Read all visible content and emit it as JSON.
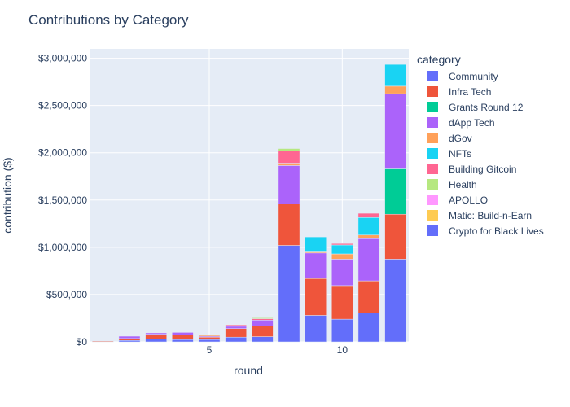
{
  "chart_data": {
    "type": "bar",
    "barmode": "stack",
    "title": "Contributions by Category",
    "xlabel": "round",
    "ylabel": "contribution ($)",
    "x": [
      1,
      2,
      3,
      4,
      5,
      6,
      7,
      8,
      9,
      10,
      11,
      12
    ],
    "x_ticks": [
      5,
      10
    ],
    "y_ticks": [
      0,
      500000,
      1000000,
      1500000,
      2000000,
      2500000,
      3000000
    ],
    "y_tick_labels": [
      "$0",
      "$500,000",
      "$1,000,000",
      "$1,500,000",
      "$2,000,000",
      "$2,500,000",
      "$3,000,000"
    ],
    "ylim": [
      0,
      3100000
    ],
    "xlim": [
      0.5,
      12.5
    ],
    "grid": true,
    "background": "#E5ECF6",
    "legend": {
      "title": "category",
      "placement": "right"
    },
    "series": [
      {
        "name": "Community",
        "color": "#636EFA",
        "values": [
          2000,
          15000,
          30000,
          25000,
          25000,
          50000,
          55000,
          1020000,
          280000,
          240000,
          305000,
          875000
        ]
      },
      {
        "name": "Infra Tech",
        "color": "#EF553B",
        "values": [
          8000,
          20000,
          50000,
          50000,
          25000,
          90000,
          115000,
          440000,
          390000,
          355000,
          340000,
          475000
        ]
      },
      {
        "name": "Grants Round 12",
        "color": "#00CC96",
        "values": [
          0,
          0,
          0,
          0,
          0,
          0,
          0,
          0,
          0,
          0,
          0,
          480000
        ]
      },
      {
        "name": "dApp Tech",
        "color": "#AB63FA",
        "values": [
          3000,
          25000,
          15000,
          25000,
          10000,
          25000,
          60000,
          405000,
          270000,
          280000,
          455000,
          795000
        ]
      },
      {
        "name": "dGov",
        "color": "#FFA15A",
        "values": [
          0,
          0,
          0,
          0,
          10000,
          0,
          0,
          25000,
          20000,
          55000,
          30000,
          80000
        ]
      },
      {
        "name": "NFTs",
        "color": "#19D3F3",
        "values": [
          0,
          0,
          0,
          0,
          0,
          0,
          0,
          0,
          150000,
          95000,
          185000,
          230000
        ]
      },
      {
        "name": "Building Gitcoin",
        "color": "#FF6692",
        "values": [
          0,
          0,
          0,
          0,
          0,
          15000,
          15000,
          130000,
          0,
          15000,
          45000,
          0
        ]
      },
      {
        "name": "Health",
        "color": "#B6E880",
        "values": [
          0,
          0,
          0,
          0,
          0,
          0,
          10000,
          25000,
          0,
          0,
          0,
          0
        ]
      },
      {
        "name": "APOLLO",
        "color": "#FF97FF",
        "values": [
          0,
          0,
          0,
          0,
          0,
          0,
          0,
          0,
          0,
          0,
          0,
          0
        ]
      },
      {
        "name": "Matic: Build-n-Earn",
        "color": "#FECB52",
        "values": [
          0,
          0,
          0,
          0,
          0,
          0,
          0,
          0,
          0,
          0,
          0,
          0
        ]
      },
      {
        "name": "Crypto for Black Lives",
        "color": "#636EFA",
        "values": [
          0,
          0,
          0,
          0,
          0,
          0,
          0,
          0,
          0,
          0,
          0,
          0
        ]
      }
    ]
  }
}
